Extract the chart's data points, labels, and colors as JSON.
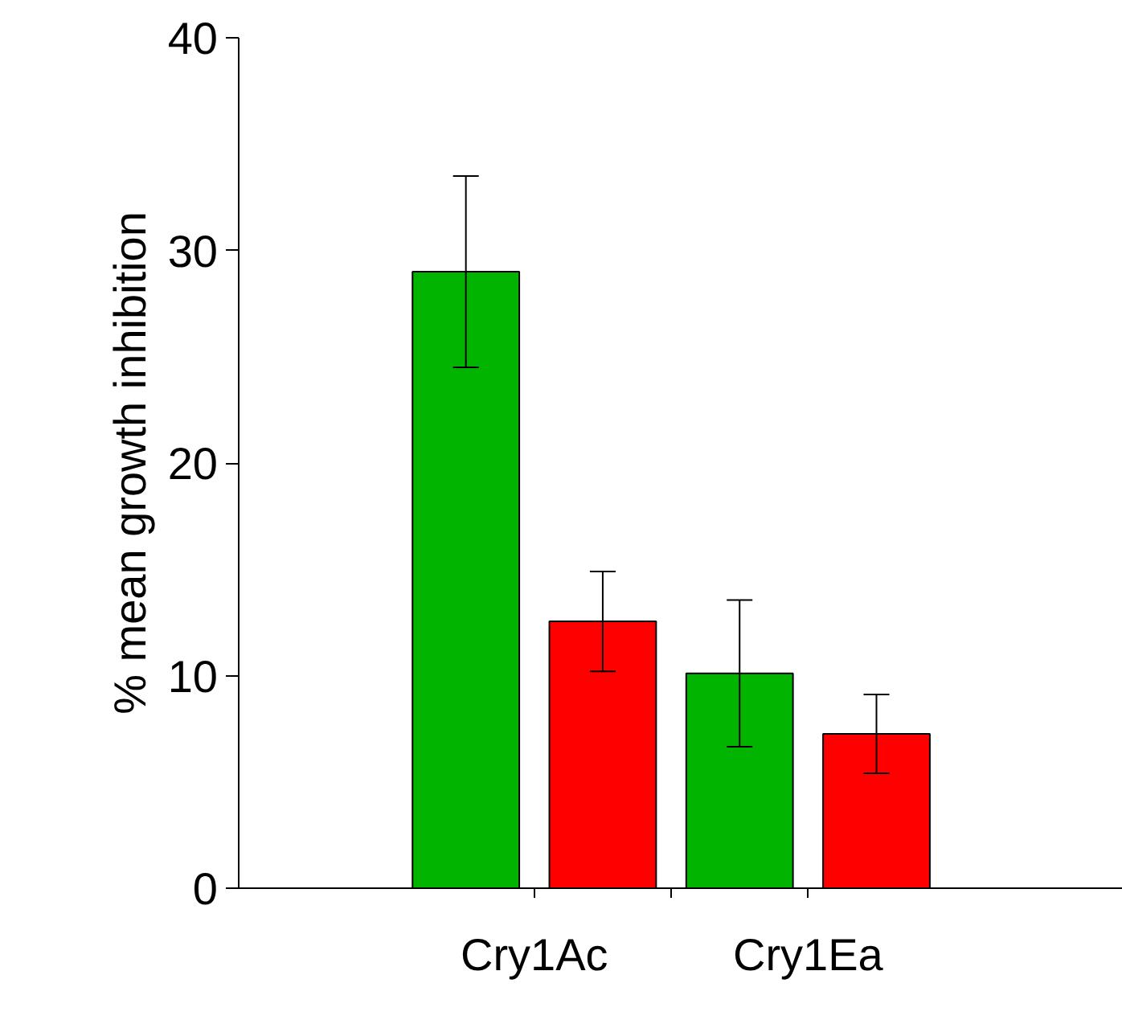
{
  "chart_data": {
    "type": "bar",
    "ylabel": "% mean growth inhibition",
    "categories": [
      "Cry1Ac",
      "Cry1Ea"
    ],
    "series": [
      {
        "color": "#00b400",
        "values": [
          29.0,
          10.1
        ],
        "errors": [
          4.5,
          3.45
        ]
      },
      {
        "color": "#ff0000",
        "values": [
          12.55,
          7.26
        ],
        "errors": [
          2.35,
          1.85
        ]
      }
    ],
    "ylim": [
      0,
      40
    ],
    "yticks": [
      0,
      10,
      20,
      30,
      40
    ],
    "grid": false
  }
}
